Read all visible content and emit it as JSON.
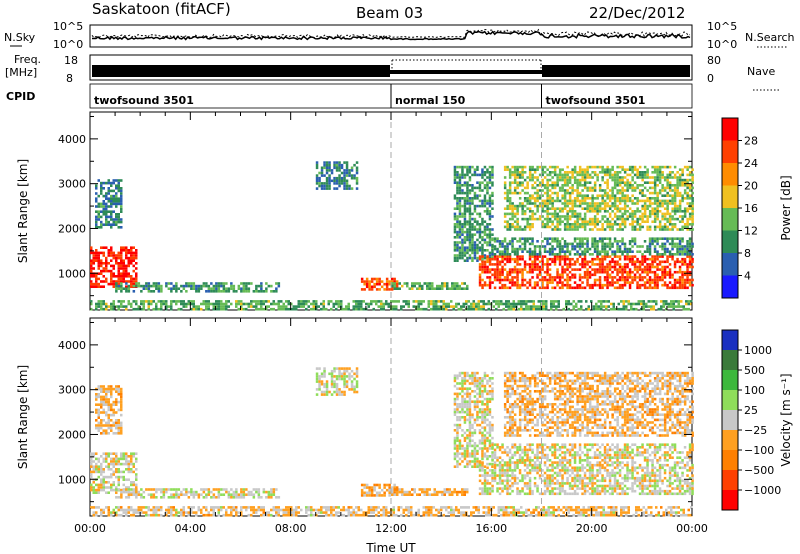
{
  "header": {
    "station": "Saskatoon (fitACF)",
    "beam": "Beam 03",
    "date": "22/Dec/2012"
  },
  "strip_labels": {
    "nsky": "N.Sky",
    "freq": "Freq.",
    "freq_unit": "[MHz]",
    "cpid": "CPID",
    "nsearch": "N.Search",
    "nave": "Nave",
    "nsky_ticks": [
      "10^5",
      "10^0"
    ],
    "nsearch_ticks": [
      "10^5",
      "10^0"
    ],
    "freq_ticks": [
      "18",
      "8"
    ],
    "nave_ticks": [
      "80",
      "0"
    ]
  },
  "cpid_modes": [
    {
      "label": "twofsound 3501",
      "start_hour": 0,
      "end_hour": 12
    },
    {
      "label": "normal 150",
      "start_hour": 12,
      "end_hour": 18
    },
    {
      "label": "twofsound 3501",
      "start_hour": 18,
      "end_hour": 24
    }
  ],
  "chart_data": [
    {
      "type": "heatmap",
      "xlabel": "",
      "ylabel": "Slant Range [km]",
      "xlim": [
        0,
        24
      ],
      "ylim": [
        180,
        4600
      ],
      "yticks": [
        "1000",
        "2000",
        "3000",
        "4000"
      ],
      "colorbar": {
        "label": "Power [dB]",
        "range": [
          0,
          30
        ],
        "ticks": [
          "4",
          "8",
          "12",
          "16",
          "20",
          "24",
          "28"
        ],
        "colors": [
          "#1a1aff",
          "#2a5fb0",
          "#2e8b57",
          "#66bb55",
          "#f0c020",
          "#ff8c00",
          "#ff4000",
          "#ff0000"
        ]
      },
      "regions": [
        {
          "hours": [
            0.0,
            1.8
          ],
          "range_km": [
            700,
            1600
          ],
          "value": 27
        },
        {
          "hours": [
            1.0,
            7.5
          ],
          "range_km": [
            600,
            800
          ],
          "value": 10
        },
        {
          "hours": [
            0.2,
            1.2
          ],
          "range_km": [
            2000,
            3100
          ],
          "value": 8
        },
        {
          "hours": [
            9.0,
            10.6
          ],
          "range_km": [
            2900,
            3500
          ],
          "value": 8
        },
        {
          "hours": [
            10.8,
            12.2
          ],
          "range_km": [
            650,
            900
          ],
          "value": 24
        },
        {
          "hours": [
            12.0,
            15.0
          ],
          "range_km": [
            680,
            800
          ],
          "value": 12
        },
        {
          "hours": [
            14.5,
            16.0
          ],
          "range_km": [
            1300,
            3400
          ],
          "value": 10
        },
        {
          "hours": [
            15.5,
            24.0
          ],
          "range_km": [
            700,
            1400
          ],
          "value": 25
        },
        {
          "hours": [
            16.0,
            24.0
          ],
          "range_km": [
            1400,
            1800
          ],
          "value": 10
        },
        {
          "hours": [
            16.5,
            24.0
          ],
          "range_km": [
            2000,
            3400
          ],
          "value": 14
        },
        {
          "hours": [
            0.0,
            24.0
          ],
          "range_km": [
            200,
            400
          ],
          "value": 12
        }
      ]
    },
    {
      "type": "heatmap",
      "xlabel": "Time UT",
      "ylabel": "Slant Range [km]",
      "xlim": [
        0,
        24
      ],
      "ylim": [
        180,
        4600
      ],
      "xticks": [
        "00:00",
        "04:00",
        "08:00",
        "12:00",
        "16:00",
        "20:00",
        "00:00"
      ],
      "yticks": [
        "1000",
        "2000",
        "3000",
        "4000"
      ],
      "colorbar": {
        "label": "Velocity [m s⁻¹]",
        "range": [
          -1000,
          1000
        ],
        "ticks": [
          "1000",
          "500",
          "100",
          "25",
          "−25",
          "−100",
          "−500",
          "−1000"
        ],
        "colors": [
          "#1a30c0",
          "#3a7a3a",
          "#3cb83c",
          "#8fdd5a",
          "#c8c8c8",
          "#ffa020",
          "#ff8000",
          "#ff4000",
          "#ff0000"
        ]
      },
      "regions": [
        {
          "hours": [
            0.0,
            1.8
          ],
          "range_km": [
            700,
            1600
          ],
          "value": 0
        },
        {
          "hours": [
            1.0,
            7.5
          ],
          "range_km": [
            600,
            800
          ],
          "value": 0
        },
        {
          "hours": [
            0.2,
            1.2
          ],
          "range_km": [
            2000,
            3100
          ],
          "value": -150
        },
        {
          "hours": [
            9.0,
            10.6
          ],
          "range_km": [
            2900,
            3500
          ],
          "value": 0
        },
        {
          "hours": [
            10.8,
            12.2
          ],
          "range_km": [
            650,
            900
          ],
          "value": -200
        },
        {
          "hours": [
            12.0,
            15.0
          ],
          "range_km": [
            680,
            800
          ],
          "value": -200
        },
        {
          "hours": [
            14.5,
            16.0
          ],
          "range_km": [
            1300,
            3400
          ],
          "value": 0
        },
        {
          "hours": [
            15.5,
            24.0
          ],
          "range_km": [
            700,
            1400
          ],
          "value": 0
        },
        {
          "hours": [
            16.0,
            24.0
          ],
          "range_km": [
            1400,
            1800
          ],
          "value": 0
        },
        {
          "hours": [
            16.5,
            24.0
          ],
          "range_km": [
            2000,
            3400
          ],
          "value": -150
        },
        {
          "hours": [
            0.0,
            24.0
          ],
          "range_km": [
            200,
            400
          ],
          "value": -100
        }
      ]
    }
  ]
}
